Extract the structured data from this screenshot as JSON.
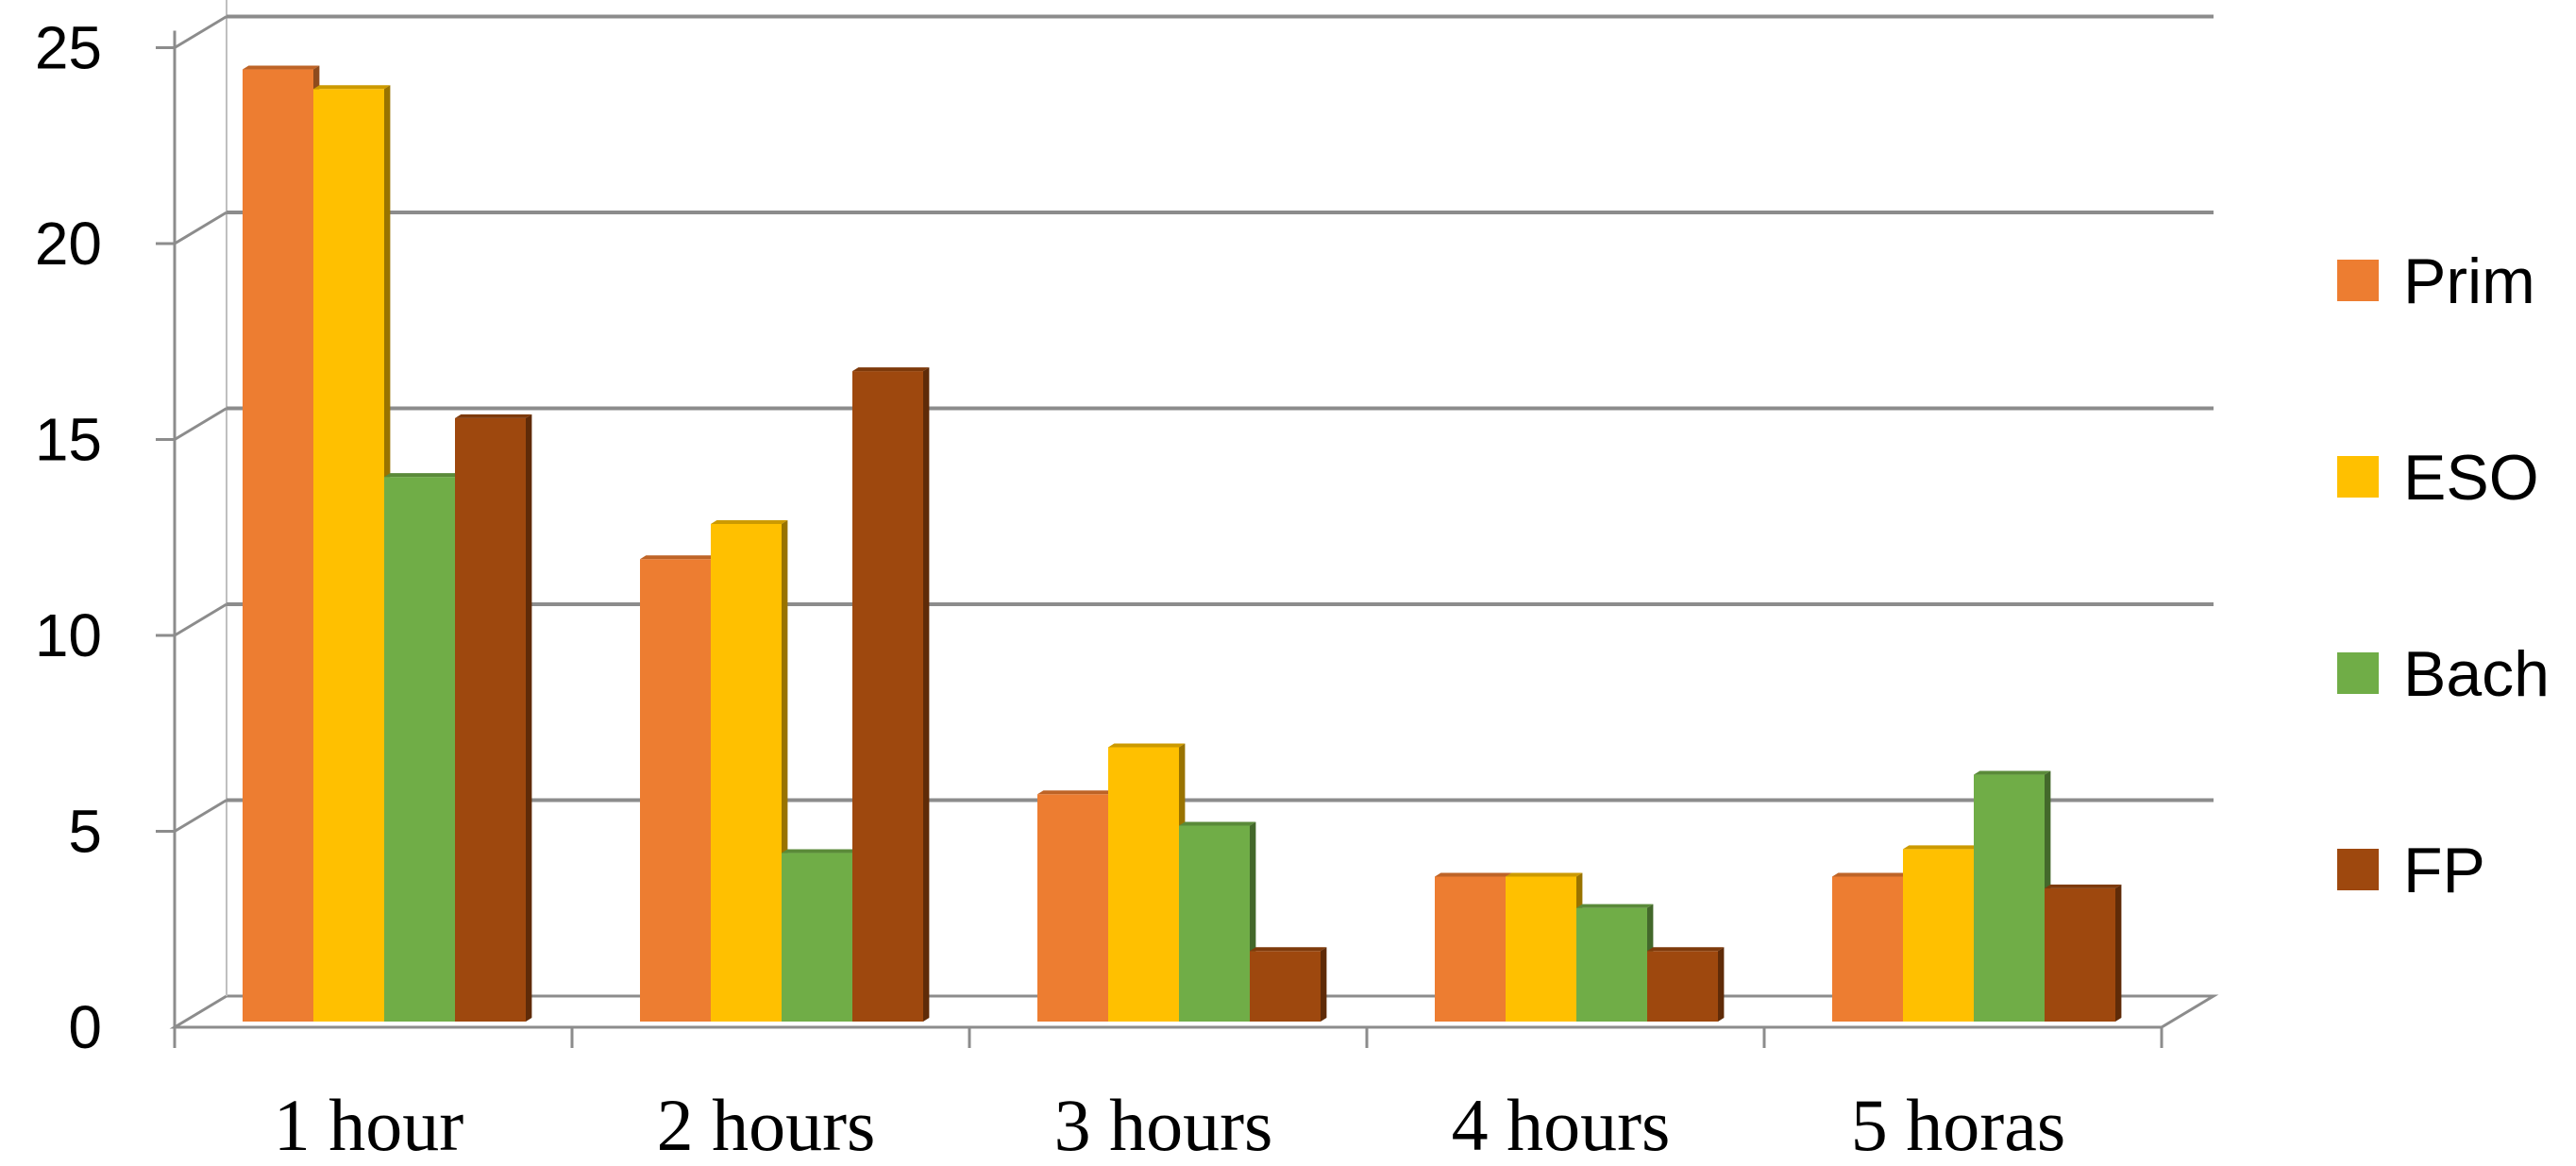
{
  "chart_data": {
    "type": "bar",
    "title": "",
    "xlabel": "",
    "ylabel": "",
    "ylim": [
      0,
      25
    ],
    "yticks": [
      0,
      5,
      10,
      15,
      20,
      25
    ],
    "grid": true,
    "legend_position": "right",
    "categories": [
      "1 hour",
      "2 hours",
      "3 hours",
      "4 hours",
      "5 horas"
    ],
    "series": [
      {
        "name": "Prim",
        "color": "#ED7D31",
        "values": [
          24.3,
          11.8,
          5.8,
          3.7,
          3.7
        ]
      },
      {
        "name": "ESO",
        "color": "#FFC000",
        "values": [
          23.8,
          12.7,
          7.0,
          3.7,
          4.4
        ]
      },
      {
        "name": "Bach",
        "color": "#70AD47",
        "values": [
          13.9,
          4.3,
          5.0,
          2.9,
          6.3
        ]
      },
      {
        "name": "FP",
        "color": "#9E480E",
        "values": [
          15.4,
          16.6,
          1.8,
          1.8,
          3.4
        ]
      }
    ]
  }
}
